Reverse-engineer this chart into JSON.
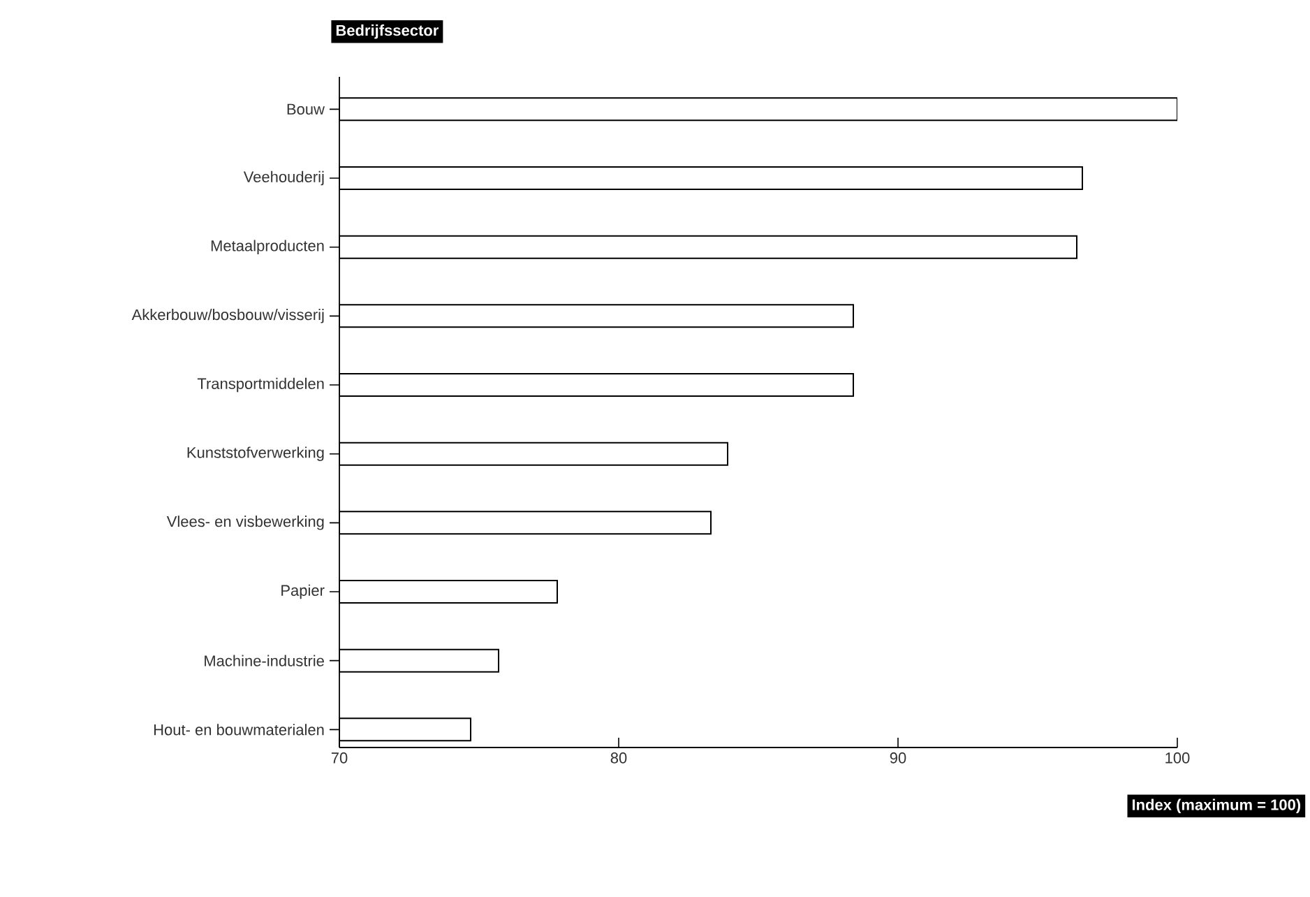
{
  "chart_data": {
    "type": "bar",
    "orientation": "horizontal",
    "ylabel": "Bedrijfssector",
    "xlabel": "Index (maximum = 100)",
    "categories": [
      "Bouw",
      "Veehouderij",
      "Metaalproducten",
      "Akkerbouw/bosbouw/visserij",
      "Transportmiddelen",
      "Kunststofverwerking",
      "Vlees- en visbewerking",
      "Papier",
      "Machine-industrie",
      "Hout- en bouwmaterialen"
    ],
    "values": [
      100,
      96.6,
      96.4,
      88.4,
      88.4,
      83.9,
      83.3,
      77.8,
      75.7,
      74.7
    ],
    "color": "#ffffff",
    "xlim": [
      70,
      100
    ],
    "xticks": [
      70,
      80,
      90,
      100
    ]
  }
}
